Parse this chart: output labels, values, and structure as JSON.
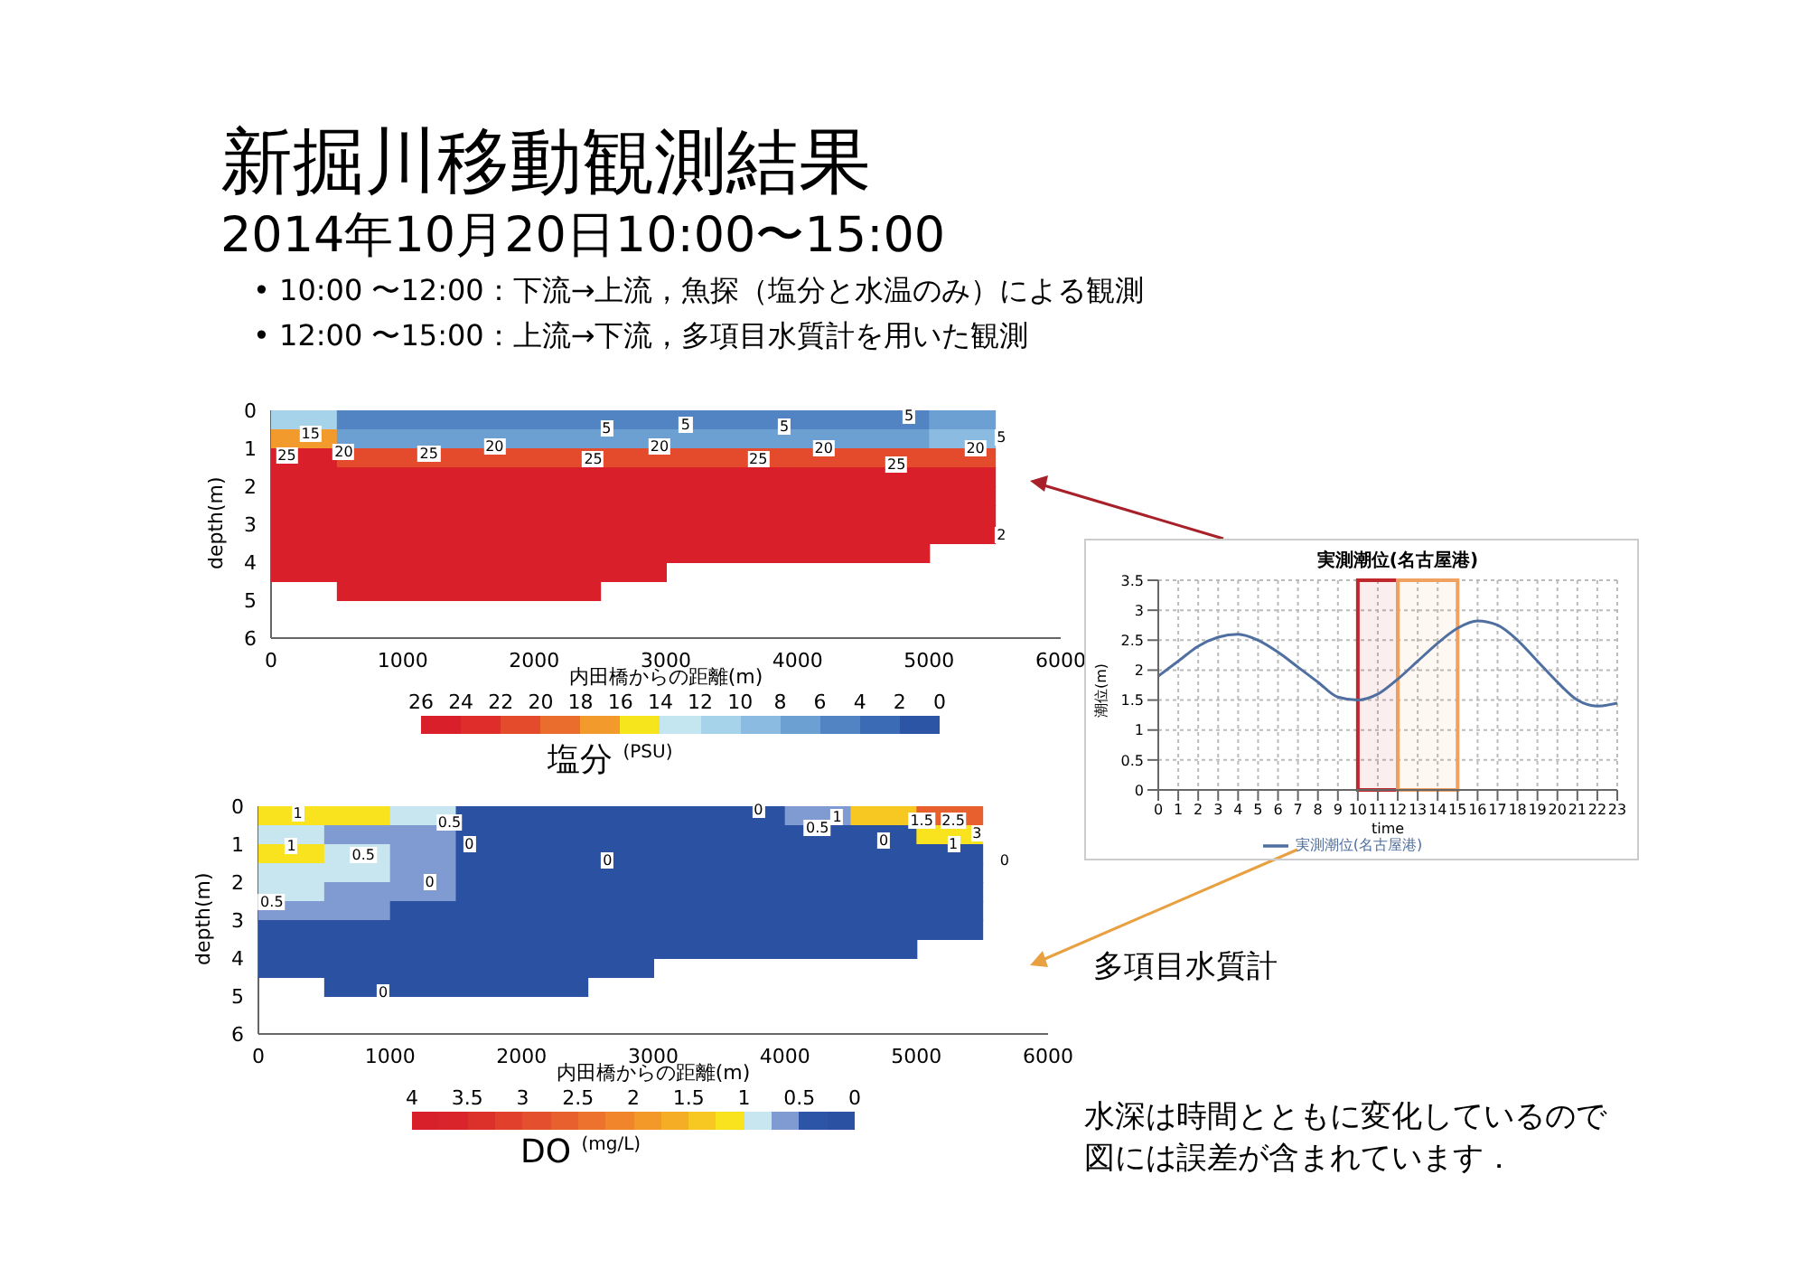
{
  "chart_data": [
    {
      "type": "heatmap",
      "title": "新掘川移動観測結果",
      "subtitle": "2014年10月20日10:00〜15:00",
      "annotations": [
        "• 10:00 〜12:00：下流→上流，魚探（塩分と水温のみ）による観測",
        "• 12:00 〜15:00：上流→下流，多項目水質計を用いた観測",
        "15",
        "20",
        "25",
        "5",
        "5",
        "5",
        "5",
        "5",
        "20",
        "20",
        "20",
        "20",
        "25",
        "25",
        "25",
        "25",
        "2"
      ],
      "xlabel": "内田橋からの距離(m)",
      "ylabel": "depth(m)",
      "x": [
        250,
        750,
        1250,
        1750,
        2250,
        2750,
        3250,
        3750,
        4250,
        4750,
        5250
      ],
      "y": [
        0.25,
        0.75,
        1.25,
        1.75,
        2.25,
        2.75,
        3.25,
        3.75,
        4.25,
        4.75
      ],
      "xlim": [
        0,
        6000
      ],
      "xticks": [
        0,
        1000,
        2000,
        3000,
        4000,
        5000,
        6000
      ],
      "ylim": [
        6,
        0
      ],
      "yticks": [
        0,
        1,
        2,
        3,
        4,
        5,
        6
      ],
      "cells": [
        [
          12,
          5,
          5,
          5,
          5,
          5,
          5,
          5,
          5,
          5,
          8
        ],
        [
          18,
          8,
          8,
          8,
          8,
          8,
          8,
          8,
          8,
          8,
          10
        ],
        [
          26,
          22,
          22,
          22,
          22,
          22,
          22,
          22,
          22,
          22,
          22
        ],
        [
          26,
          26,
          26,
          26,
          26,
          26,
          26,
          26,
          26,
          26,
          26
        ],
        [
          26,
          26,
          26,
          26,
          26,
          26,
          26,
          26,
          26,
          26,
          26
        ],
        [
          26,
          26,
          26,
          26,
          26,
          26,
          26,
          26,
          26,
          26,
          26
        ],
        [
          26,
          26,
          26,
          26,
          26,
          26,
          26,
          26,
          26,
          26,
          26
        ],
        [
          26,
          26,
          26,
          26,
          26,
          26,
          26,
          26,
          26,
          26,
          null
        ],
        [
          26,
          26,
          26,
          26,
          26,
          26,
          null,
          null,
          null,
          null,
          null
        ],
        [
          null,
          26,
          26,
          26,
          26,
          null,
          null,
          null,
          null,
          null,
          null
        ]
      ],
      "clim": [
        26,
        0
      ],
      "cticks": [
        26,
        24,
        22,
        20,
        18,
        16,
        14,
        12,
        10,
        8,
        6,
        4,
        2,
        0
      ],
      "colors": [
        "#d9202a",
        "#de2d2a",
        "#e34b2c",
        "#ea6d2e",
        "#f39a2c",
        "#f6e41c",
        "#c4e6f0",
        "#a6d2ea",
        "#8bbbe0",
        "#6c9fd2",
        "#5284c4",
        "#3c6bb6",
        "#2d55a5"
      ],
      "clabel": "塩分 $^{(PSU)}$"
    },
    {
      "type": "heatmap",
      "annotations": [
        "多項目水質計",
        "水深は時間とともに変化しているので図には誤差が含まれています．",
        "1",
        "1",
        "0.5",
        "0.5",
        "0.5",
        "0",
        "0",
        "0",
        "0",
        "0.5",
        "1",
        "0",
        "1.5",
        "2.5",
        "3",
        "1",
        "0",
        "0"
      ],
      "xlabel": "内田橋からの距離(m)",
      "ylabel": "depth(m)",
      "x": [
        250,
        750,
        1250,
        1750,
        2250,
        2750,
        3250,
        3750,
        4250,
        4750,
        5250
      ],
      "y": [
        0.25,
        0.75,
        1.25,
        1.75,
        2.25,
        2.75,
        3.25,
        3.75,
        4.25,
        4.75
      ],
      "xlim": [
        0,
        6000
      ],
      "xticks": [
        0,
        1000,
        2000,
        3000,
        4000,
        5000,
        6000
      ],
      "ylim": [
        6,
        0
      ],
      "yticks": [
        0,
        1,
        2,
        3,
        4,
        5,
        6
      ],
      "cells": [
        [
          1.2,
          1.2,
          0.8,
          0.2,
          0.2,
          0.2,
          0.2,
          0.2,
          0.6,
          1.3,
          2.6
        ],
        [
          0.8,
          0.6,
          0.6,
          0.2,
          0.2,
          0.2,
          0.2,
          0.2,
          0.2,
          0.2,
          1.2
        ],
        [
          1.2,
          0.9,
          0.6,
          0.2,
          0.2,
          0.2,
          0.2,
          0.2,
          0.2,
          0.2,
          0.2
        ],
        [
          0.9,
          0.8,
          0.6,
          0.2,
          0.2,
          0.2,
          0.2,
          0.2,
          0.2,
          0.2,
          0.2
        ],
        [
          0.9,
          0.6,
          0.6,
          0.2,
          0.2,
          0.2,
          0.2,
          0.2,
          0.2,
          0.2,
          0.2
        ],
        [
          0.6,
          0.6,
          0.2,
          0.2,
          0.2,
          0.2,
          0.2,
          0.2,
          0.2,
          0.2,
          0.2
        ],
        [
          0.2,
          0.2,
          0.2,
          0.2,
          0.2,
          0.2,
          0.2,
          0.2,
          0.2,
          0.2,
          0.2
        ],
        [
          0.2,
          0.2,
          0.2,
          0.2,
          0.2,
          0.2,
          0.2,
          0.2,
          0.2,
          0.2,
          null
        ],
        [
          0.2,
          0.2,
          0.2,
          0.2,
          0.2,
          0.2,
          null,
          null,
          null,
          null,
          null
        ],
        [
          null,
          0.2,
          0.2,
          0.2,
          0.2,
          null,
          null,
          null,
          null,
          null,
          null
        ]
      ],
      "clim": [
        4,
        0
      ],
      "cticks": [
        4,
        3.5,
        3,
        2.5,
        2,
        1.5,
        1,
        0.5,
        0
      ],
      "colors": [
        "#d8202a",
        "#d8242a",
        "#dc302b",
        "#e0402c",
        "#e4502d",
        "#e8602d",
        "#ec722d",
        "#f0852c",
        "#f3992a",
        "#f6ad26",
        "#f8c822",
        "#f9e21e",
        "#c8e6ef",
        "#7f9bd1",
        "#2c55a8",
        "#2a51a2"
      ],
      "clabel": "DO $^{(mg/L)}$"
    },
    {
      "type": "line",
      "title": "実測潮位(名古屋港)",
      "xlabel": "time",
      "ylabel": "潮位(m)",
      "x": [
        0,
        1,
        2,
        3,
        4,
        5,
        6,
        7,
        8,
        9,
        10,
        11,
        12,
        13,
        14,
        15,
        16,
        17,
        18,
        19,
        20,
        21,
        22,
        23
      ],
      "series": [
        {
          "name": "実測潮位(名古屋港)",
          "color": "#4f6fa0",
          "values": [
            1.9,
            2.15,
            2.4,
            2.55,
            2.6,
            2.5,
            2.3,
            2.05,
            1.8,
            1.55,
            1.5,
            1.6,
            1.85,
            2.15,
            2.45,
            2.7,
            2.82,
            2.75,
            2.5,
            2.15,
            1.8,
            1.5,
            1.4,
            1.45
          ]
        }
      ],
      "xlim": [
        0,
        23
      ],
      "xticks": [
        0,
        1,
        2,
        3,
        4,
        5,
        6,
        7,
        8,
        9,
        10,
        11,
        12,
        13,
        14,
        15,
        16,
        17,
        18,
        19,
        20,
        21,
        22,
        23
      ],
      "ylim": [
        0,
        3.5
      ],
      "yticks": [
        0,
        0.5,
        1,
        1.5,
        2,
        2.5,
        3,
        3.5
      ],
      "grid": true,
      "legend": "bottom",
      "marker": "none",
      "bands": [
        {
          "axis": "x",
          "from": 10,
          "to": 12,
          "color": "#c0272d"
        },
        {
          "axis": "x",
          "from": 12,
          "to": 15,
          "color": "#f0a060"
        }
      ]
    }
  ]
}
